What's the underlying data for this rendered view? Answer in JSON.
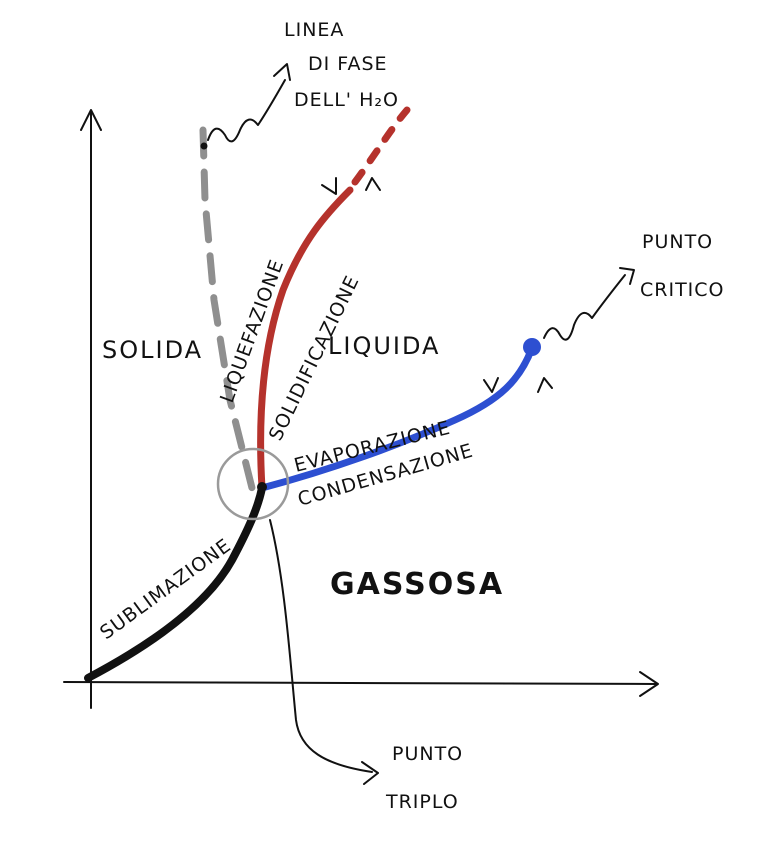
{
  "diagram": {
    "regions": {
      "solid": "SOLIDA",
      "liquid": "LIQUIDA",
      "gas": "GASSOSA"
    },
    "curves": {
      "fusion_down": "LIQUEFAZIONE",
      "fusion_up": "SOLIDIFICAZIONE",
      "vapor_down": "EVAPORAZIONE",
      "vapor_up": "CONDENSAZIONE",
      "sublimation": "SUBLIMAZIONE"
    },
    "callouts": {
      "water_line": [
        "LINEA",
        "DI FASE",
        "DELL' H₂O"
      ],
      "critical_point": [
        "PUNTO",
        "CRITICO"
      ],
      "triple_point": [
        "PUNTO",
        "TRIPLO"
      ]
    },
    "colors": {
      "fusion_curve": "#b5322c",
      "vapor_curve": "#2d4fd1",
      "sublimation_curve": "#111111",
      "water_line": "#8f8f8f",
      "triple_circle": "#9a9a9a"
    }
  }
}
